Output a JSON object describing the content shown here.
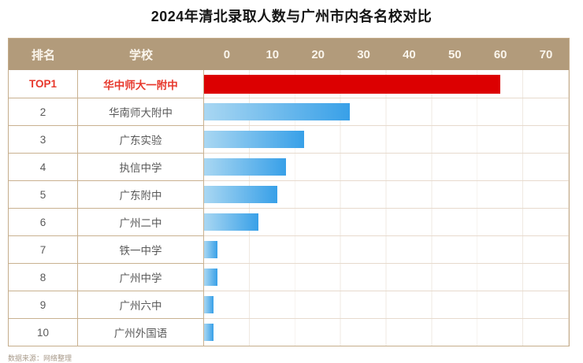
{
  "title": "2024年清北录取人数与广州市内各名校对比",
  "table": {
    "headers": {
      "rank": "排名",
      "school": "学校"
    },
    "axis_ticks": [
      "0",
      "10",
      "20",
      "30",
      "40",
      "50",
      "60",
      "70"
    ]
  },
  "rows": [
    {
      "rank": "TOP1",
      "school": "华中师大一附中",
      "value": 65,
      "highlight": true
    },
    {
      "rank": "2",
      "school": "华南师大附中",
      "value": 32,
      "highlight": false
    },
    {
      "rank": "3",
      "school": "广东实验",
      "value": 22,
      "highlight": false
    },
    {
      "rank": "4",
      "school": "执信中学",
      "value": 18,
      "highlight": false
    },
    {
      "rank": "5",
      "school": "广东附中",
      "value": 16,
      "highlight": false
    },
    {
      "rank": "6",
      "school": "广州二中",
      "value": 12,
      "highlight": false
    },
    {
      "rank": "7",
      "school": "铁一中学",
      "value": 3,
      "highlight": false
    },
    {
      "rank": "8",
      "school": "广州中学",
      "value": 3,
      "highlight": false
    },
    {
      "rank": "9",
      "school": "广州六中",
      "value": 2,
      "highlight": false
    },
    {
      "rank": "10",
      "school": "广州外国语",
      "value": 2,
      "highlight": false
    }
  ],
  "chart_data": {
    "type": "bar",
    "orientation": "horizontal",
    "title": "2024年清北录取人数与广州市内各名校对比",
    "categories": [
      "华中师大一附中",
      "华南师大附中",
      "广东实验",
      "执信中学",
      "广东附中",
      "广州二中",
      "铁一中学",
      "广州中学",
      "广州六中",
      "广州外国语"
    ],
    "values": [
      65,
      32,
      22,
      18,
      16,
      12,
      3,
      3,
      2,
      2
    ],
    "xlabel": "",
    "ylabel": "",
    "xlim": [
      0,
      80
    ],
    "tick_step": 10,
    "grid": true,
    "highlight_index": 0,
    "highlight_color": "#dc0001",
    "bar_gradient": [
      "#a9d7f2",
      "#38a0e8"
    ]
  },
  "footer": {
    "caption": "数据来源：网络整理"
  },
  "colors": {
    "header_bg": "#b29b7b",
    "header_text": "#faf5ec",
    "border": "#c9b190",
    "grid_line": "#efe9e1",
    "row_text": "#595959",
    "highlight_text": "#e7382c",
    "bar_red": "#dc0001",
    "bar_blue_start": "#a9d7f2",
    "bar_blue_end": "#38a0e8"
  }
}
